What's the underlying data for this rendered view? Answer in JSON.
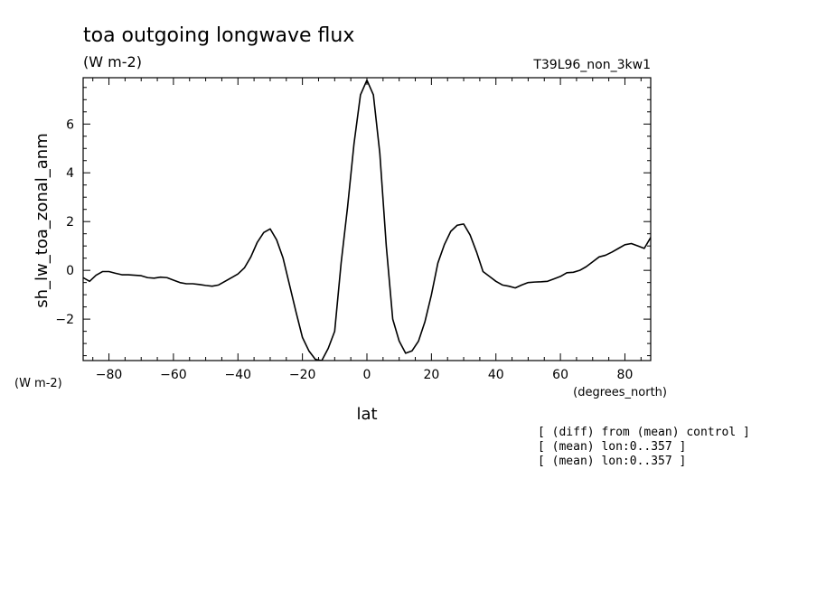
{
  "title": "toa outgoing longwave flux",
  "units": "(W m-2)",
  "run_label": "T39L96_non_3kw1",
  "y_units_corner": "(W m-2)",
  "x_units_corner": "(degrees_north)",
  "notes": [
    "[ (diff) from (mean) control ]",
    "[ (mean) lon:0..357 ]",
    "[ (mean) lon:0..357 ]"
  ],
  "chart_data": {
    "type": "line",
    "title": "toa outgoing longwave flux",
    "xlabel": "lat",
    "ylabel": "sh_lw_toa_zonal_anm",
    "xlim": [
      -88,
      88
    ],
    "ylim": [
      -3.7,
      7.9
    ],
    "x_ticks": [
      -80,
      -60,
      -40,
      -20,
      0,
      20,
      40,
      60,
      80
    ],
    "y_ticks": [
      -2,
      0,
      2,
      4,
      6
    ],
    "line_color": "#000000",
    "series": [
      {
        "x": [
          -88,
          -86,
          -84,
          -82,
          -80,
          -78,
          -76,
          -74,
          -72,
          -70,
          -68,
          -66,
          -64,
          -62,
          -60,
          -58,
          -56,
          -54,
          -52,
          -50,
          -48,
          -46,
          -44,
          -42,
          -40,
          -38,
          -36,
          -34,
          -32,
          -30,
          -28,
          -26,
          -24,
          -22,
          -20,
          -18,
          -16,
          -14,
          -12,
          -10,
          -8,
          -6,
          -4,
          -2,
          0,
          2,
          4,
          6,
          8,
          10,
          12,
          14,
          16,
          18,
          20,
          22,
          24,
          26,
          28,
          30,
          32,
          34,
          36,
          38,
          40,
          42,
          44,
          46,
          48,
          50,
          52,
          54,
          56,
          58,
          60,
          62,
          64,
          66,
          68,
          70,
          72,
          74,
          76,
          78,
          80,
          82,
          84,
          86,
          88
        ],
        "y": [
          -0.3,
          -0.45,
          -0.2,
          -0.05,
          -0.05,
          -0.12,
          -0.18,
          -0.18,
          -0.2,
          -0.22,
          -0.3,
          -0.32,
          -0.28,
          -0.3,
          -0.4,
          -0.5,
          -0.55,
          -0.55,
          -0.58,
          -0.62,
          -0.65,
          -0.6,
          -0.45,
          -0.3,
          -0.15,
          0.1,
          0.55,
          1.15,
          1.55,
          1.7,
          1.25,
          0.5,
          -0.6,
          -1.7,
          -2.75,
          -3.3,
          -3.65,
          -3.7,
          -3.2,
          -2.5,
          0.3,
          2.6,
          5.2,
          7.2,
          7.8,
          7.2,
          4.8,
          1.0,
          -2.0,
          -2.9,
          -3.4,
          -3.3,
          -2.9,
          -2.1,
          -1.0,
          0.3,
          1.05,
          1.6,
          1.85,
          1.9,
          1.45,
          0.75,
          -0.05,
          -0.25,
          -0.45,
          -0.6,
          -0.65,
          -0.72,
          -0.6,
          -0.5,
          -0.48,
          -0.47,
          -0.45,
          -0.35,
          -0.25,
          -0.1,
          -0.08,
          0.0,
          0.15,
          0.35,
          0.55,
          0.62,
          0.75,
          0.9,
          1.05,
          1.1,
          1.0,
          0.9,
          1.35
        ]
      }
    ]
  }
}
